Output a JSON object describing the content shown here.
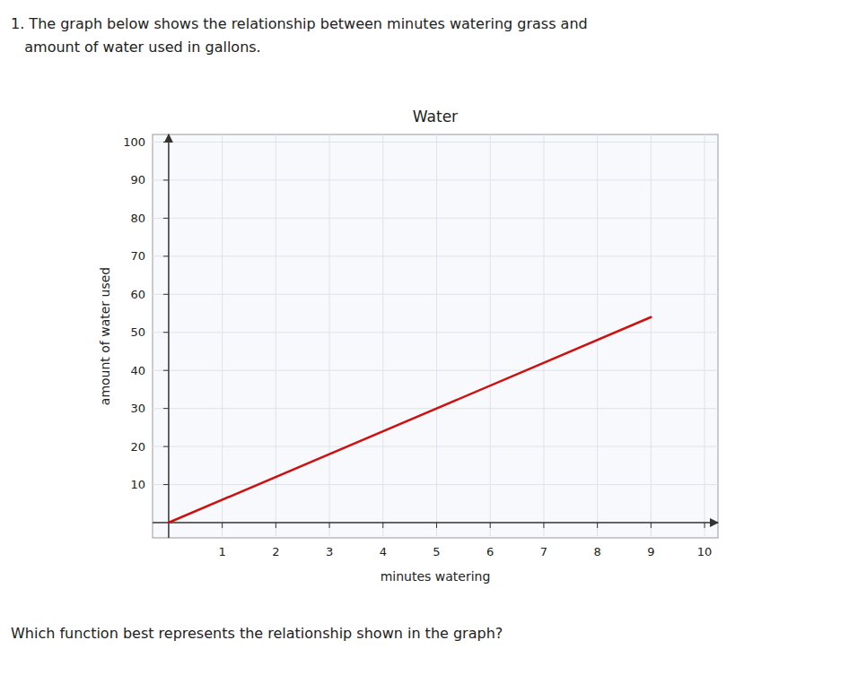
{
  "chart_data": {
    "type": "line",
    "title": "Water",
    "x_label": "minutes watering",
    "y_label": "amount of water used",
    "annotations": [
      "1. The graph below shows the relationship between minutes watering grass and",
      "   amount of water used in gallons.",
      "Which function best represents the relationship shown in the graph?"
    ],
    "x": [
      0,
      9
    ],
    "values": [
      0,
      54
    ],
    "color": "#cc1111",
    "xlim": [
      -0.3,
      10.25
    ],
    "ylim": [
      -4,
      102
    ],
    "xticks": [
      1,
      2,
      3,
      4,
      5,
      6,
      7,
      8,
      9,
      10
    ],
    "yticks": [
      10,
      20,
      30,
      40,
      50,
      60,
      70,
      80,
      90,
      100
    ],
    "grid": true
  }
}
